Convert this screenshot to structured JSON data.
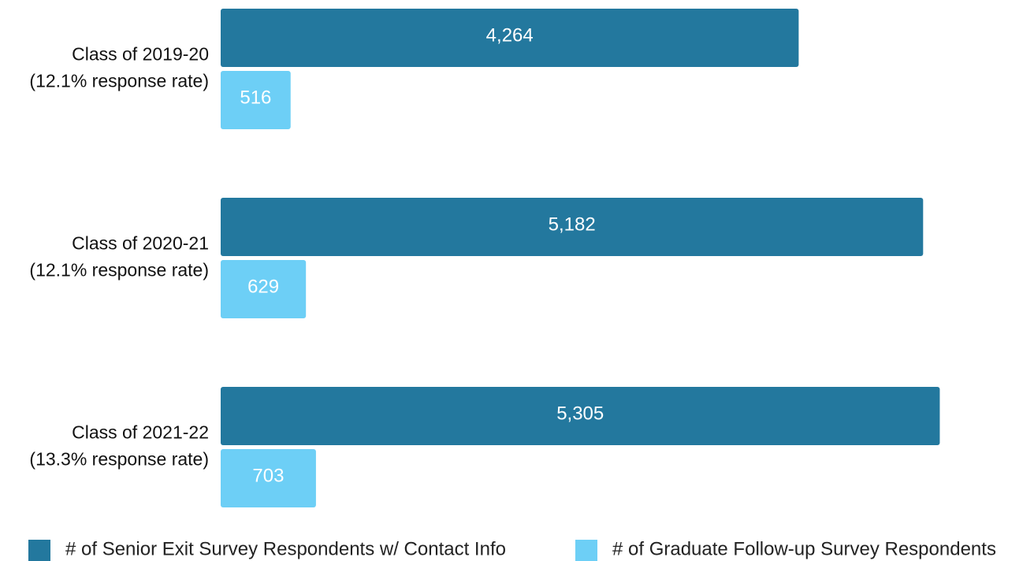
{
  "chart_data": {
    "type": "bar",
    "orientation": "horizontal",
    "categories": [
      [
        "Class of 2019-20",
        "(12.1% response rate)"
      ],
      [
        "Class of 2020-21",
        "(12.1% response rate)"
      ],
      [
        "Class of 2021-22",
        "(13.3% response rate)"
      ]
    ],
    "series": [
      {
        "name": "# of Senior Exit Survey Respondents w/ Contact Info",
        "color": "#23789e",
        "values": [
          4264,
          5182,
          5305
        ],
        "value_labels": [
          "4,264",
          "5,182",
          "5,305"
        ]
      },
      {
        "name": "# of Graduate Follow-up Survey Respondents",
        "color": "#6dcff6",
        "values": [
          516,
          629,
          703
        ],
        "value_labels": [
          "516",
          "629",
          "703"
        ]
      }
    ],
    "xlim": [
      0,
      6000
    ],
    "legend": "bottom"
  }
}
